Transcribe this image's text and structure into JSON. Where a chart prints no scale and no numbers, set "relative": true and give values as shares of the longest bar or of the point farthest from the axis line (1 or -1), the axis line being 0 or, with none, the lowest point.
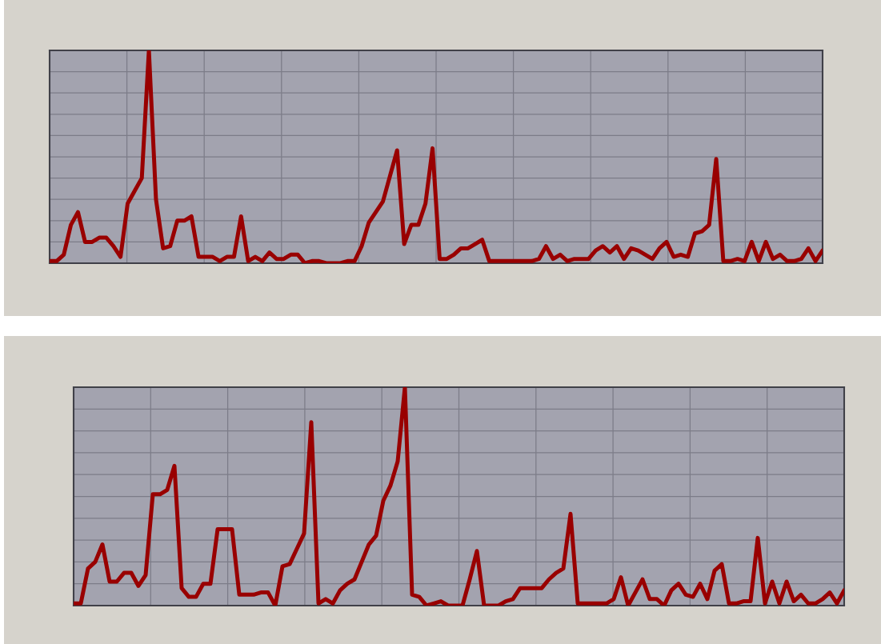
{
  "chart_data": [
    {
      "type": "line",
      "relative": true,
      "grid": true,
      "marker": "none",
      "line_style": "solid",
      "categories": [
        null,
        null,
        null,
        null,
        null,
        null,
        null,
        null,
        null,
        null,
        null,
        null,
        null,
        null,
        null,
        null,
        null,
        null,
        null,
        null,
        null,
        null,
        null,
        null,
        null,
        null,
        null,
        null,
        null,
        null,
        null,
        null,
        null,
        null,
        null,
        null,
        null,
        null,
        null,
        null,
        null,
        null,
        null,
        null,
        null,
        null,
        null,
        null,
        null,
        null,
        null,
        null,
        null,
        null,
        null,
        null,
        null,
        null,
        null,
        null,
        null,
        null,
        null,
        null,
        null,
        null,
        null,
        null,
        null,
        null,
        null,
        null,
        null,
        null,
        null,
        null,
        null,
        null,
        null,
        null,
        null,
        null,
        null,
        null,
        null,
        null,
        null,
        null,
        null,
        null,
        null,
        null,
        null,
        null,
        null,
        null,
        null,
        null,
        null,
        null,
        null,
        null,
        null,
        null,
        null,
        null,
        null,
        null,
        null,
        null
      ],
      "series": [
        {
          "color": "#990000",
          "values": [
            0.01,
            0.01,
            0.04,
            0.18,
            0.24,
            0.1,
            0.1,
            0.12,
            0.12,
            0.08,
            0.03,
            0.28,
            0.34,
            0.4,
            1.0,
            0.3,
            0.07,
            0.08,
            0.2,
            0.2,
            0.22,
            0.03,
            0.03,
            0.03,
            0.01,
            0.03,
            0.03,
            0.22,
            0.01,
            0.03,
            0.01,
            0.05,
            0.02,
            0.02,
            0.04,
            0.04,
            0,
            0.01,
            0.01,
            0,
            0,
            0,
            0.01,
            0.01,
            0.08,
            0.19,
            0.24,
            0.29,
            0.41,
            0.53,
            0.09,
            0.18,
            0.18,
            0.28,
            0.54,
            0.02,
            0.02,
            0.04,
            0.07,
            0.07,
            0.09,
            0.11,
            0.01,
            0.01,
            0.01,
            0.01,
            0.01,
            0.01,
            0.01,
            0.02,
            0.08,
            0.02,
            0.04,
            0.01,
            0.02,
            0.02,
            0.02,
            0.06,
            0.08,
            0.05,
            0.08,
            0.02,
            0.07,
            0.06,
            0.04,
            0.02,
            0.07,
            0.1,
            0.03,
            0.04,
            0.03,
            0.14,
            0.15,
            0.18,
            0.49,
            0.01,
            0.01,
            0.02,
            0.01,
            0.1,
            0.01,
            0.1,
            0.02,
            0.04,
            0.01,
            0.01,
            0.02,
            0.07,
            0.01,
            0.06
          ]
        }
      ]
    },
    {
      "type": "line",
      "relative": true,
      "grid": true,
      "marker": "none",
      "line_style": "solid",
      "categories": [
        null,
        null,
        null,
        null,
        null,
        null,
        null,
        null,
        null,
        null,
        null,
        null,
        null,
        null,
        null,
        null,
        null,
        null,
        null,
        null,
        null,
        null,
        null,
        null,
        null,
        null,
        null,
        null,
        null,
        null,
        null,
        null,
        null,
        null,
        null,
        null,
        null,
        null,
        null,
        null,
        null,
        null,
        null,
        null,
        null,
        null,
        null,
        null,
        null,
        null,
        null,
        null,
        null,
        null,
        null,
        null,
        null,
        null,
        null,
        null,
        null,
        null,
        null,
        null,
        null,
        null,
        null,
        null,
        null,
        null,
        null,
        null,
        null,
        null,
        null,
        null,
        null,
        null,
        null,
        null,
        null,
        null,
        null,
        null,
        null,
        null,
        null,
        null,
        null,
        null,
        null,
        null,
        null,
        null,
        null,
        null,
        null,
        null,
        null,
        null,
        null,
        null,
        null,
        null,
        null,
        null,
        null,
        null
      ],
      "series": [
        {
          "color": "#990000",
          "values": [
            0.01,
            0.01,
            0.17,
            0.2,
            0.28,
            0.11,
            0.11,
            0.15,
            0.15,
            0.09,
            0.14,
            0.51,
            0.51,
            0.53,
            0.64,
            0.08,
            0.04,
            0.04,
            0.1,
            0.1,
            0.35,
            0.35,
            0.35,
            0.05,
            0.05,
            0.05,
            0.06,
            0.06,
            0,
            0.18,
            0.19,
            0.26,
            0.33,
            0.84,
            0.01,
            0.03,
            0.01,
            0.07,
            0.1,
            0.12,
            0.2,
            0.28,
            0.32,
            0.48,
            0.55,
            0.66,
            1.0,
            0.05,
            0.04,
            0,
            0.01,
            0.02,
            0,
            0,
            0,
            0.12,
            0.25,
            0,
            0,
            0,
            0.02,
            0.03,
            0.08,
            0.08,
            0.08,
            0.08,
            0.12,
            0.15,
            0.17,
            0.42,
            0.01,
            0.01,
            0.01,
            0.01,
            0.01,
            0.03,
            0.13,
            0,
            0.06,
            0.12,
            0.03,
            0.03,
            0,
            0.07,
            0.1,
            0.05,
            0.04,
            0.1,
            0.03,
            0.16,
            0.19,
            0.01,
            0.01,
            0.02,
            0.02,
            0.31,
            0.01,
            0.11,
            0.01,
            0.11,
            0.02,
            0.05,
            0.01,
            0.01,
            0.03,
            0.06,
            0.01,
            0.07
          ]
        }
      ]
    }
  ]
}
